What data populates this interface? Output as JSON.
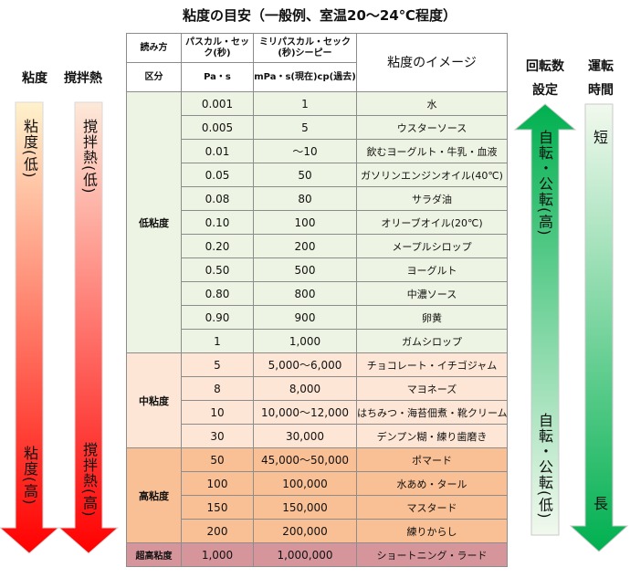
{
  "title": "粘度の目安（一般例、室温20～24℃程度）",
  "left": {
    "viscosity": {
      "head": "粘度",
      "top_label": "粘度(低)",
      "bottom_label": "粘度(高)"
    },
    "heat": {
      "head": "撹拌熱",
      "top_label": "撹拌熱(低)",
      "bottom_label": "撹拌熱(高)"
    }
  },
  "right": {
    "rotation": {
      "head_line1": "回転数",
      "head_line2": "設定",
      "top_label": "自転・公転(高)",
      "bottom_label": "自転・公転(低)"
    },
    "runtime": {
      "head_line1": "運転",
      "head_line2": "時間",
      "top_label": "短",
      "bottom_label": "長"
    }
  },
  "table": {
    "header": {
      "reading_label": "読み方",
      "pa_reading": "パスカル・セック(秒)",
      "mpa_reading": "ミリパスカル・セック(秒)シーピー",
      "image_label": "粘度のイメージ",
      "category_label": "区分",
      "pa_unit": "Pa・s",
      "mpa_unit": "mPa・s(現在)cp(過去)"
    },
    "groups": [
      {
        "name": "低粘度",
        "class": "low",
        "rows": [
          {
            "pa": "0.001",
            "mpa": "1",
            "example": "水"
          },
          {
            "pa": "0.005",
            "mpa": "5",
            "example": "ウスターソース"
          },
          {
            "pa": "0.01",
            "mpa": "～10",
            "example": "飲むヨーグルト・牛乳・血液"
          },
          {
            "pa": "0.05",
            "mpa": "50",
            "example": "ガソリンエンジンオイル(40℃)"
          },
          {
            "pa": "0.08",
            "mpa": "80",
            "example": "サラダ油"
          },
          {
            "pa": "0.10",
            "mpa": "100",
            "example": "オリーブオイル(20℃)"
          },
          {
            "pa": "0.20",
            "mpa": "200",
            "example": "メープルシロップ"
          },
          {
            "pa": "0.50",
            "mpa": "500",
            "example": "ヨーグルト"
          },
          {
            "pa": "0.80",
            "mpa": "800",
            "example": "中濃ソース"
          },
          {
            "pa": "0.90",
            "mpa": "900",
            "example": "卵黄"
          },
          {
            "pa": "1",
            "mpa": "1,000",
            "example": "ガムシロップ"
          }
        ]
      },
      {
        "name": "中粘度",
        "class": "mid",
        "rows": [
          {
            "pa": "5",
            "mpa": "5,000～6,000",
            "example": "チョコレート・イチゴジャム"
          },
          {
            "pa": "8",
            "mpa": "8,000",
            "example": "マヨネーズ"
          },
          {
            "pa": "10",
            "mpa": "10,000～12,000",
            "example": "はちみつ・海苔佃煮・靴クリーム"
          },
          {
            "pa": "30",
            "mpa": "30,000",
            "example": "デンプン糊・練り歯磨き"
          }
        ]
      },
      {
        "name": "高粘度",
        "class": "high",
        "rows": [
          {
            "pa": "50",
            "mpa": "45,000～50,000",
            "example": "ポマード"
          },
          {
            "pa": "100",
            "mpa": "100,000",
            "example": "水あめ・タール"
          },
          {
            "pa": "150",
            "mpa": "150,000",
            "example": "マスタード"
          },
          {
            "pa": "200",
            "mpa": "200,000",
            "example": "練りからし"
          }
        ]
      },
      {
        "name": "超高粘度",
        "class": "ultra",
        "rows": [
          {
            "pa": "1,000",
            "mpa": "1,000,000",
            "example": "ショートニング・ラード"
          }
        ]
      }
    ]
  },
  "colors": {
    "viscosity_arrow_top": "#fff2cc",
    "viscosity_arrow_bottom": "#ff0000",
    "heat_arrow_top": "#fde9d9",
    "heat_arrow_bottom": "#ff0000",
    "rotation_arrow_top": "#00b050",
    "rotation_arrow_bottom": "#f2f9ee",
    "runtime_arrow_top": "#f2f9ee",
    "runtime_arrow_bottom": "#00b050"
  }
}
